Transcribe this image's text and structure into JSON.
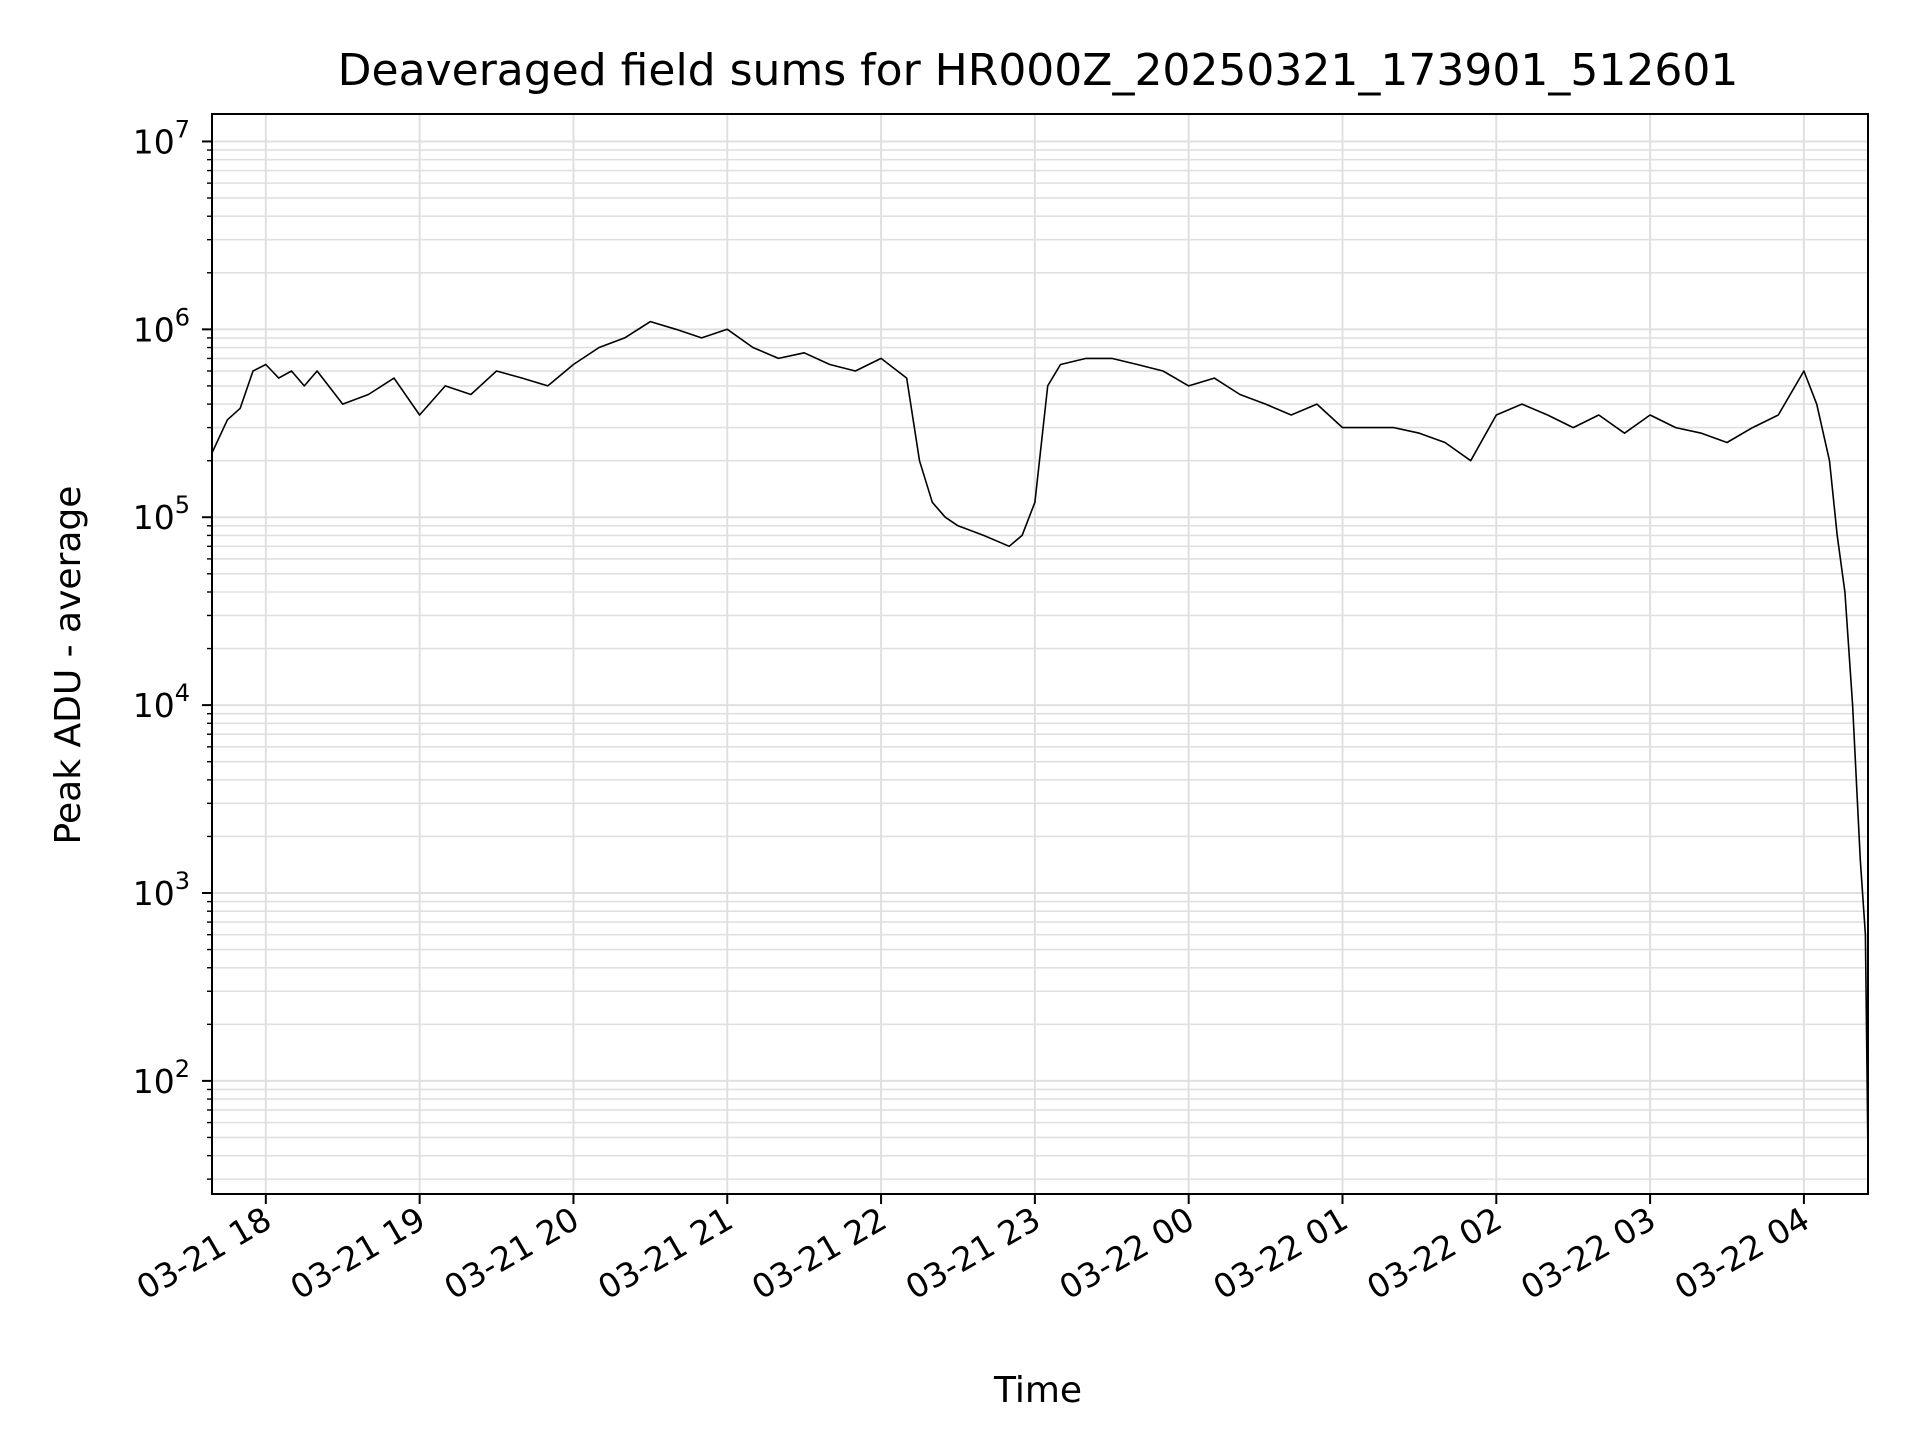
{
  "chart_data": {
    "type": "line",
    "title": "Deaveraged field sums for HR000Z_20250321_173901_512601",
    "xlabel": "Time",
    "ylabel": "Peak ADU - average",
    "yscale": "log",
    "ylim": [
      25,
      14000000
    ],
    "xlim": [
      "2025-03-21 17:39",
      "2025-03-22 04:25"
    ],
    "grid": true,
    "line_color": "#000000",
    "grid_color": "#e0e0e0",
    "x_ticks": [
      {
        "t": "2025-03-21 18:00",
        "label": "03-21 18"
      },
      {
        "t": "2025-03-21 19:00",
        "label": "03-21 19"
      },
      {
        "t": "2025-03-21 20:00",
        "label": "03-21 20"
      },
      {
        "t": "2025-03-21 21:00",
        "label": "03-21 21"
      },
      {
        "t": "2025-03-21 22:00",
        "label": "03-21 22"
      },
      {
        "t": "2025-03-21 23:00",
        "label": "03-21 23"
      },
      {
        "t": "2025-03-22 00:00",
        "label": "03-22 00"
      },
      {
        "t": "2025-03-22 01:00",
        "label": "03-22 01"
      },
      {
        "t": "2025-03-22 02:00",
        "label": "03-22 02"
      },
      {
        "t": "2025-03-22 03:00",
        "label": "03-22 03"
      },
      {
        "t": "2025-03-22 04:00",
        "label": "03-22 04"
      }
    ],
    "y_ticks": [
      {
        "value": 100,
        "base": "10",
        "exp": "2"
      },
      {
        "value": 1000,
        "base": "10",
        "exp": "3"
      },
      {
        "value": 10000,
        "base": "10",
        "exp": "4"
      },
      {
        "value": 100000,
        "base": "10",
        "exp": "5"
      },
      {
        "value": 1000000,
        "base": "10",
        "exp": "6"
      },
      {
        "value": 10000000,
        "base": "10",
        "exp": "7"
      }
    ],
    "series": [
      {
        "x": [
          "2025-03-21 17:39",
          "2025-03-21 17:45",
          "2025-03-21 17:50",
          "2025-03-21 17:55",
          "2025-03-21 18:00",
          "2025-03-21 18:05",
          "2025-03-21 18:10",
          "2025-03-21 18:15",
          "2025-03-21 18:20",
          "2025-03-21 18:30",
          "2025-03-21 18:40",
          "2025-03-21 18:50",
          "2025-03-21 19:00",
          "2025-03-21 19:10",
          "2025-03-21 19:20",
          "2025-03-21 19:30",
          "2025-03-21 19:40",
          "2025-03-21 19:50",
          "2025-03-21 20:00",
          "2025-03-21 20:10",
          "2025-03-21 20:20",
          "2025-03-21 20:30",
          "2025-03-21 20:40",
          "2025-03-21 20:50",
          "2025-03-21 21:00",
          "2025-03-21 21:10",
          "2025-03-21 21:20",
          "2025-03-21 21:30",
          "2025-03-21 21:40",
          "2025-03-21 21:50",
          "2025-03-21 22:00",
          "2025-03-21 22:10",
          "2025-03-21 22:15",
          "2025-03-21 22:20",
          "2025-03-21 22:25",
          "2025-03-21 22:30",
          "2025-03-21 22:40",
          "2025-03-21 22:50",
          "2025-03-21 22:55",
          "2025-03-21 23:00",
          "2025-03-21 23:05",
          "2025-03-21 23:10",
          "2025-03-21 23:20",
          "2025-03-21 23:30",
          "2025-03-21 23:40",
          "2025-03-21 23:50",
          "2025-03-22 00:00",
          "2025-03-22 00:10",
          "2025-03-22 00:20",
          "2025-03-22 00:30",
          "2025-03-22 00:40",
          "2025-03-22 00:50",
          "2025-03-22 01:00",
          "2025-03-22 01:10",
          "2025-03-22 01:20",
          "2025-03-22 01:30",
          "2025-03-22 01:40",
          "2025-03-22 01:50",
          "2025-03-22 02:00",
          "2025-03-22 02:10",
          "2025-03-22 02:20",
          "2025-03-22 02:30",
          "2025-03-22 02:40",
          "2025-03-22 02:50",
          "2025-03-22 03:00",
          "2025-03-22 03:10",
          "2025-03-22 03:20",
          "2025-03-22 03:30",
          "2025-03-22 03:40",
          "2025-03-22 03:50",
          "2025-03-22 04:00",
          "2025-03-22 04:05",
          "2025-03-22 04:10",
          "2025-03-22 04:13",
          "2025-03-22 04:16",
          "2025-03-22 04:19",
          "2025-03-22 04:22",
          "2025-03-22 04:24",
          "2025-03-22 04:25"
        ],
        "y": [
          220000,
          330000,
          380000,
          600000,
          650000,
          550000,
          600000,
          500000,
          600000,
          400000,
          450000,
          550000,
          350000,
          500000,
          450000,
          600000,
          550000,
          500000,
          650000,
          800000,
          900000,
          1100000,
          1000000,
          900000,
          1000000,
          800000,
          700000,
          750000,
          650000,
          600000,
          700000,
          550000,
          200000,
          120000,
          100000,
          90000,
          80000,
          70000,
          80000,
          120000,
          500000,
          650000,
          700000,
          700000,
          650000,
          600000,
          500000,
          550000,
          450000,
          400000,
          350000,
          400000,
          300000,
          300000,
          300000,
          280000,
          250000,
          200000,
          350000,
          400000,
          350000,
          300000,
          350000,
          280000,
          350000,
          300000,
          280000,
          250000,
          300000,
          350000,
          600000,
          400000,
          200000,
          80000,
          40000,
          10000,
          1500,
          600,
          40
        ]
      }
    ]
  }
}
